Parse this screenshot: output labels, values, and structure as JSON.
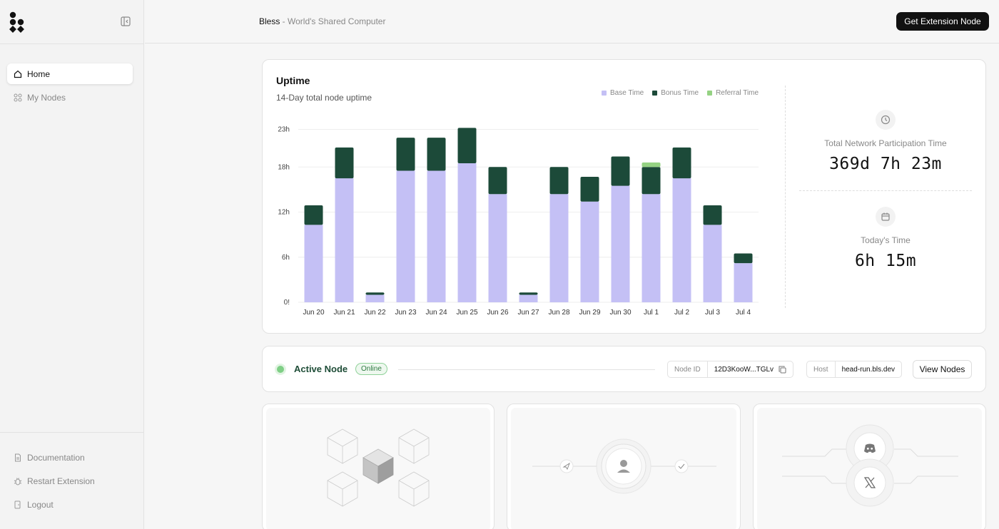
{
  "sidebar": {
    "logo_icon": "bless-logo-icon",
    "collapse_icon": "sidebar-collapse-icon",
    "nav": [
      {
        "label": "Home",
        "icon": "home-icon",
        "active": true
      },
      {
        "label": "My Nodes",
        "icon": "grid-icon",
        "active": false
      }
    ],
    "bottom_nav": [
      {
        "label": "Documentation",
        "icon": "document-icon"
      },
      {
        "label": "Restart Extension",
        "icon": "bug-icon"
      },
      {
        "label": "Logout",
        "icon": "logout-icon"
      }
    ]
  },
  "header": {
    "brand": "Bless",
    "tagline": " - World's Shared Computer",
    "cta_label": "Get Extension Node"
  },
  "uptime": {
    "title": "Uptime",
    "subtitle": "14-Day total node uptime",
    "legend": [
      {
        "label": "Base Time",
        "color": "#c4c0f5"
      },
      {
        "label": "Bonus Time",
        "color": "#1c4a39"
      },
      {
        "label": "Referral Time",
        "color": "#95d283"
      }
    ]
  },
  "chart_data": {
    "type": "bar",
    "stacked": true,
    "categories": [
      "Jun 20",
      "Jun 21",
      "Jun 22",
      "Jun 23",
      "Jun 24",
      "Jun 25",
      "Jun 26",
      "Jun 27",
      "Jun 28",
      "Jun 29",
      "Jun 30",
      "Jul 1",
      "Jul 2",
      "Jul 3",
      "Jul 4"
    ],
    "series": [
      {
        "name": "Base Time",
        "color": "#c4c0f5",
        "values": [
          10.3,
          16.5,
          1.0,
          17.5,
          17.5,
          18.5,
          14.4,
          1.0,
          14.4,
          13.4,
          15.5,
          14.4,
          16.5,
          10.3,
          5.2
        ]
      },
      {
        "name": "Bonus Time",
        "color": "#1c4a39",
        "values": [
          2.6,
          4.1,
          0.3,
          4.4,
          4.4,
          4.7,
          3.6,
          0.3,
          3.6,
          3.3,
          3.9,
          3.6,
          4.1,
          2.6,
          1.3
        ]
      },
      {
        "name": "Referral Time",
        "color": "#95d283",
        "values": [
          0,
          0,
          0,
          0,
          0,
          0,
          0,
          0,
          0,
          0,
          0,
          0.6,
          0,
          0,
          0
        ]
      }
    ],
    "y_ticks": [
      "0!",
      "6h",
      "12h",
      "18h",
      "23h"
    ],
    "ylim": [
      0,
      24
    ],
    "grid": true,
    "legend_position": "top-right"
  },
  "stats": {
    "total_label": "Total Network Participation Time",
    "total_value": "369d 7h 23m",
    "total_icon": "clock-icon",
    "today_label": "Today's Time",
    "today_value": "6h 15m",
    "today_icon": "calendar-icon"
  },
  "node": {
    "title": "Active Node",
    "status": "Online",
    "node_id_label": "Node ID",
    "node_id_value": "12D3KooW...TGLv",
    "host_label": "Host",
    "host_value": "head-run.bls.dev",
    "view_label": "View Nodes"
  }
}
